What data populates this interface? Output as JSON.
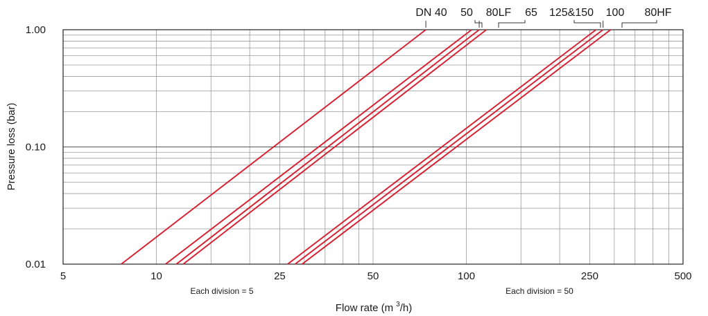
{
  "chart_data": {
    "type": "line",
    "xlabel": "Flow rate (m",
    "xlabel_sup": "3",
    "xlabel_tail": "/h)",
    "ylabel": "Pressure loss (bar)",
    "x_scale": "log",
    "y_scale": "log",
    "xlim": [
      5,
      500
    ],
    "ylim": [
      0.01,
      1.0
    ],
    "x_ticks": [
      {
        "value": 5,
        "label": "5"
      },
      {
        "value": 10,
        "label": "10"
      },
      {
        "value": 25,
        "label": "25"
      },
      {
        "value": 50,
        "label": "50"
      },
      {
        "value": 100,
        "label": "100"
      },
      {
        "value": 250,
        "label": "250"
      },
      {
        "value": 500,
        "label": "500"
      }
    ],
    "y_ticks": [
      {
        "value": 0.01,
        "label": "0.01"
      },
      {
        "value": 0.1,
        "label": "0.10"
      },
      {
        "value": 1.0,
        "label": "1.00"
      }
    ],
    "notes": [
      "Each division = 5",
      "Each division = 50"
    ],
    "grid": true,
    "line_color": "#d62232",
    "series": [
      {
        "name": "DN 40",
        "points": [
          [
            7.7,
            0.01
          ],
          [
            74,
            1.0
          ]
        ]
      },
      {
        "name": "50",
        "points": [
          [
            10.7,
            0.01
          ],
          [
            104,
            1.0
          ]
        ]
      },
      {
        "name": "80LF",
        "points": [
          [
            11.6,
            0.01
          ],
          [
            110,
            1.0
          ]
        ]
      },
      {
        "name": "65",
        "points": [
          [
            12.2,
            0.01
          ],
          [
            116,
            1.0
          ]
        ]
      },
      {
        "name": "125&150",
        "points": [
          [
            26.5,
            0.01
          ],
          [
            262,
            1.0
          ]
        ]
      },
      {
        "name": "100",
        "points": [
          [
            28,
            0.01
          ],
          [
            276,
            1.0
          ]
        ]
      },
      {
        "name": "80HF",
        "points": [
          [
            29.5,
            0.01
          ],
          [
            292,
            1.0
          ]
        ]
      }
    ]
  }
}
